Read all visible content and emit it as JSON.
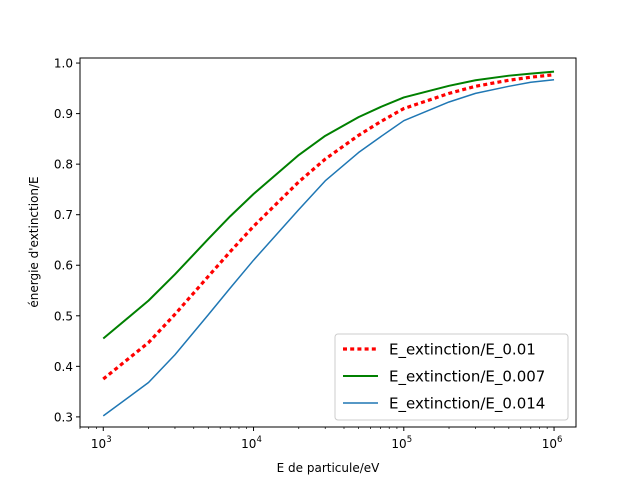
{
  "chart_data": {
    "type": "line",
    "xlabel": "E de particule/eV",
    "ylabel": "énergie d'extinction/E",
    "xscale": "log",
    "xlim": [
      700,
      1400000
    ],
    "ylim": [
      0.28,
      1.01
    ],
    "x_ticks": [
      {
        "value": 1000,
        "base": "10",
        "exp": "3"
      },
      {
        "value": 10000,
        "base": "10",
        "exp": "4"
      },
      {
        "value": 100000,
        "base": "10",
        "exp": "5"
      },
      {
        "value": 1000000,
        "base": "10",
        "exp": "6"
      }
    ],
    "y_ticks": [
      "0.3",
      "0.4",
      "0.5",
      "0.6",
      "0.7",
      "0.8",
      "0.9",
      "1.0"
    ],
    "grid": false,
    "legend_position": "lower-right",
    "x": [
      1000,
      2000,
      3000,
      5000,
      7000,
      10000,
      20000,
      30000,
      50000,
      70000,
      100000,
      200000,
      300000,
      500000,
      700000,
      1000000
    ],
    "series": [
      {
        "name": "E_extinction/E_0.01",
        "color": "#ff0000",
        "style": "dotted",
        "values": [
          0.375,
          0.447,
          0.503,
          0.578,
          0.627,
          0.677,
          0.765,
          0.81,
          0.857,
          0.884,
          0.91,
          0.94,
          0.954,
          0.966,
          0.972,
          0.977
        ]
      },
      {
        "name": "E_extinction/E_0.007",
        "color": "#008000",
        "style": "solid",
        "values": [
          0.455,
          0.53,
          0.582,
          0.652,
          0.697,
          0.741,
          0.818,
          0.856,
          0.893,
          0.913,
          0.932,
          0.955,
          0.966,
          0.975,
          0.979,
          0.983
        ]
      },
      {
        "name": "E_extinction/E_0.014",
        "color": "#1f77b4",
        "style": "solid",
        "values": [
          0.302,
          0.368,
          0.423,
          0.502,
          0.555,
          0.61,
          0.71,
          0.767,
          0.823,
          0.854,
          0.886,
          0.923,
          0.94,
          0.954,
          0.962,
          0.967
        ]
      }
    ]
  }
}
